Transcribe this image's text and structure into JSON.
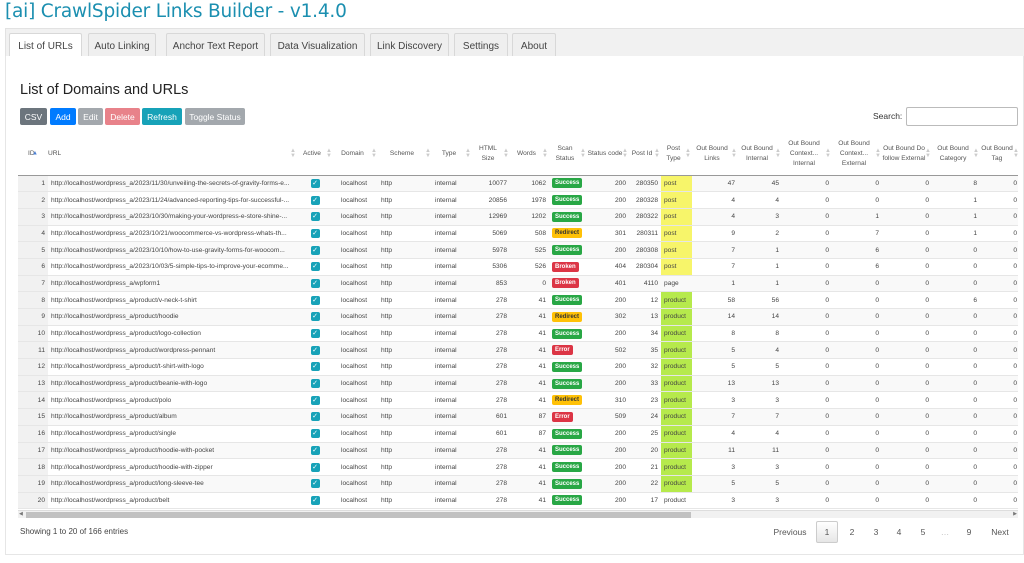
{
  "app": {
    "title": "[ai] CrawlSpider Links Builder - v1.4.0"
  },
  "tabs": [
    "List of URLs",
    "Auto Linking",
    "Anchor Text Report",
    "Data Visualization",
    "Link Discovery",
    "Settings",
    "About"
  ],
  "page": {
    "heading": "List of Domains and URLs"
  },
  "toolbar": {
    "csv": "CSV",
    "add": "Add",
    "edit": "Edit",
    "delete": "Delete",
    "refresh": "Refresh",
    "toggle": "Toggle Status"
  },
  "search": {
    "label": "Search:",
    "value": ""
  },
  "colors": {
    "accent": "#17a2b8",
    "success": "#28a745",
    "redirect": "#ffc107",
    "error": "#dc3545",
    "post_highlight": "#f7f56a",
    "product_highlight": "#b6ea4c"
  },
  "table": {
    "columns": [
      "ID",
      "URL",
      "Active",
      "Domain",
      "Scheme",
      "Type",
      "HTML Size",
      "Words",
      "Scan Status",
      "Status code",
      "Post Id",
      "Post Type",
      "Out Bound Links",
      "Out Bound Internal",
      "Out Bound Context... Internal",
      "Out Bound Context... External",
      "Out Bound Do follow External",
      "Out Bound Category",
      "Out Bound Tag"
    ],
    "rows": [
      [
        "1",
        "http://localhost/wordpress_a/2023/11/30/unveiling-the-secrets-of-gravity-forms-e...",
        true,
        "localhost",
        "http",
        "internal",
        "10077",
        "1062",
        "Success",
        "200",
        "280350",
        "post",
        "47",
        "45",
        "0",
        "0",
        "0",
        "8",
        "0"
      ],
      [
        "2",
        "http://localhost/wordpress_a/2023/11/24/advanced-reporting-tips-for-successful-...",
        true,
        "localhost",
        "http",
        "internal",
        "20856",
        "1978",
        "Success",
        "200",
        "280328",
        "post",
        "4",
        "4",
        "0",
        "0",
        "0",
        "1",
        "0"
      ],
      [
        "3",
        "http://localhost/wordpress_a/2023/10/30/making-your-wordpress-e-store-shine-...",
        true,
        "localhost",
        "http",
        "internal",
        "12969",
        "1202",
        "Success",
        "200",
        "280322",
        "post",
        "4",
        "3",
        "0",
        "1",
        "0",
        "1",
        "0"
      ],
      [
        "4",
        "http://localhost/wordpress_a/2023/10/21/woocommerce-vs-wordpress-whats-th...",
        true,
        "localhost",
        "http",
        "internal",
        "5069",
        "508",
        "Redirect",
        "301",
        "280311",
        "post",
        "9",
        "2",
        "0",
        "7",
        "0",
        "1",
        "0"
      ],
      [
        "5",
        "http://localhost/wordpress_a/2023/10/10/how-to-use-gravity-forms-for-woocom...",
        true,
        "localhost",
        "http",
        "internal",
        "5978",
        "525",
        "Success",
        "200",
        "280308",
        "post",
        "7",
        "1",
        "0",
        "6",
        "0",
        "0",
        "0"
      ],
      [
        "6",
        "http://localhost/wordpress_a/2023/10/03/5-simple-tips-to-improve-your-ecomme...",
        true,
        "localhost",
        "http",
        "internal",
        "5306",
        "526",
        "Broken",
        "404",
        "280304",
        "post",
        "7",
        "1",
        "0",
        "6",
        "0",
        "0",
        "0"
      ],
      [
        "7",
        "http://localhost/wordpress_a/wpform1",
        true,
        "localhost",
        "http",
        "internal",
        "853",
        "0",
        "Broken",
        "401",
        "4110",
        "page",
        "1",
        "1",
        "0",
        "0",
        "0",
        "0",
        "0"
      ],
      [
        "8",
        "http://localhost/wordpress_a/product/v-neck-t-shirt",
        true,
        "localhost",
        "http",
        "internal",
        "278",
        "41",
        "Success",
        "200",
        "12",
        "product",
        "58",
        "56",
        "0",
        "0",
        "0",
        "6",
        "0"
      ],
      [
        "9",
        "http://localhost/wordpress_a/product/hoodie",
        true,
        "localhost",
        "http",
        "internal",
        "278",
        "41",
        "Redirect",
        "302",
        "13",
        "product",
        "14",
        "14",
        "0",
        "0",
        "0",
        "0",
        "0"
      ],
      [
        "10",
        "http://localhost/wordpress_a/product/logo-collection",
        true,
        "localhost",
        "http",
        "internal",
        "278",
        "41",
        "Success",
        "200",
        "34",
        "product",
        "8",
        "8",
        "0",
        "0",
        "0",
        "0",
        "0"
      ],
      [
        "11",
        "http://localhost/wordpress_a/product/wordpress-pennant",
        true,
        "localhost",
        "http",
        "internal",
        "278",
        "41",
        "Error",
        "502",
        "35",
        "product",
        "5",
        "4",
        "0",
        "0",
        "0",
        "0",
        "0"
      ],
      [
        "12",
        "http://localhost/wordpress_a/product/t-shirt-with-logo",
        true,
        "localhost",
        "http",
        "internal",
        "278",
        "41",
        "Success",
        "200",
        "32",
        "product",
        "5",
        "5",
        "0",
        "0",
        "0",
        "0",
        "0"
      ],
      [
        "13",
        "http://localhost/wordpress_a/product/beanie-with-logo",
        true,
        "localhost",
        "http",
        "internal",
        "278",
        "41",
        "Success",
        "200",
        "33",
        "product",
        "13",
        "13",
        "0",
        "0",
        "0",
        "0",
        "0"
      ],
      [
        "14",
        "http://localhost/wordpress_a/product/polo",
        true,
        "localhost",
        "http",
        "internal",
        "278",
        "41",
        "Redirect",
        "310",
        "23",
        "product",
        "3",
        "3",
        "0",
        "0",
        "0",
        "0",
        "0"
      ],
      [
        "15",
        "http://localhost/wordpress_a/product/album",
        true,
        "localhost",
        "http",
        "internal",
        "601",
        "87",
        "Error",
        "509",
        "24",
        "product",
        "7",
        "7",
        "0",
        "0",
        "0",
        "0",
        "0"
      ],
      [
        "16",
        "http://localhost/wordpress_a/product/single",
        true,
        "localhost",
        "http",
        "internal",
        "601",
        "87",
        "Success",
        "200",
        "25",
        "product",
        "4",
        "4",
        "0",
        "0",
        "0",
        "0",
        "0"
      ],
      [
        "17",
        "http://localhost/wordpress_a/product/hoodie-with-pocket",
        true,
        "localhost",
        "http",
        "internal",
        "278",
        "41",
        "Success",
        "200",
        "20",
        "product",
        "11",
        "11",
        "0",
        "0",
        "0",
        "0",
        "0"
      ],
      [
        "18",
        "http://localhost/wordpress_a/product/hoodie-with-zipper",
        true,
        "localhost",
        "http",
        "internal",
        "278",
        "41",
        "Success",
        "200",
        "21",
        "product",
        "3",
        "3",
        "0",
        "0",
        "0",
        "0",
        "0"
      ],
      [
        "19",
        "http://localhost/wordpress_a/product/long-sleeve-tee",
        true,
        "localhost",
        "http",
        "internal",
        "278",
        "41",
        "Success",
        "200",
        "22",
        "product",
        "5",
        "5",
        "0",
        "0",
        "0",
        "0",
        "0"
      ],
      [
        "20",
        "http://localhost/wordpress_a/product/belt",
        true,
        "localhost",
        "http",
        "internal",
        "278",
        "41",
        "Success",
        "200",
        "17",
        "product",
        "3",
        "3",
        "0",
        "0",
        "0",
        "0",
        "0"
      ]
    ],
    "highlighted_rows": 19
  },
  "footer": {
    "info": "Showing 1 to 20 of 166 entries",
    "previous": "Previous",
    "pages": [
      "1",
      "2",
      "3",
      "4",
      "5",
      "…",
      "9"
    ],
    "current_page": "1",
    "next": "Next"
  }
}
